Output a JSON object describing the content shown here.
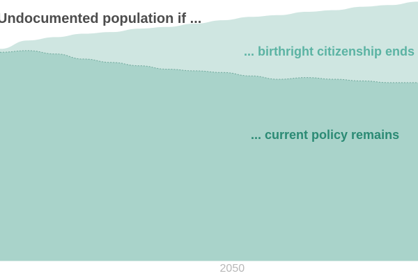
{
  "chart_data": {
    "type": "area",
    "title": "Undocumented population if ...",
    "x": [
      2025,
      2028,
      2031,
      2034,
      2037,
      2040,
      2043,
      2046,
      2049,
      2052,
      2055,
      2058,
      2061,
      2064,
      2067,
      2070
    ],
    "xlim": [
      2025,
      2070
    ],
    "ylim": [
      0,
      15.5
    ],
    "x_ticks": [
      2050
    ],
    "x_tick_labels": [
      "2050"
    ],
    "grid": false,
    "legend": "none",
    "series": [
      {
        "name": "... birthright citizenship ends",
        "values": [
          12.6,
          13.1,
          13.3,
          13.5,
          13.6,
          13.8,
          13.9,
          14.1,
          14.3,
          14.5,
          14.6,
          14.8,
          14.9,
          15.1,
          15.2,
          15.4
        ],
        "color": "#cfe6e1"
      },
      {
        "name": "... current policy remains",
        "values": [
          12.4,
          12.5,
          12.3,
          12.0,
          11.8,
          11.6,
          11.4,
          11.3,
          11.2,
          11.0,
          10.8,
          10.9,
          10.8,
          10.7,
          10.6,
          10.6
        ],
        "color": "#a9d3ca"
      }
    ],
    "annotations": [
      {
        "text": "... birthright citizenship ends",
        "color": "#5bb3a3"
      },
      {
        "text": "... current policy remains",
        "color": "#2b8a74"
      }
    ],
    "title_color": "#4d4d4d",
    "tick_color": "#b8b8b8"
  }
}
